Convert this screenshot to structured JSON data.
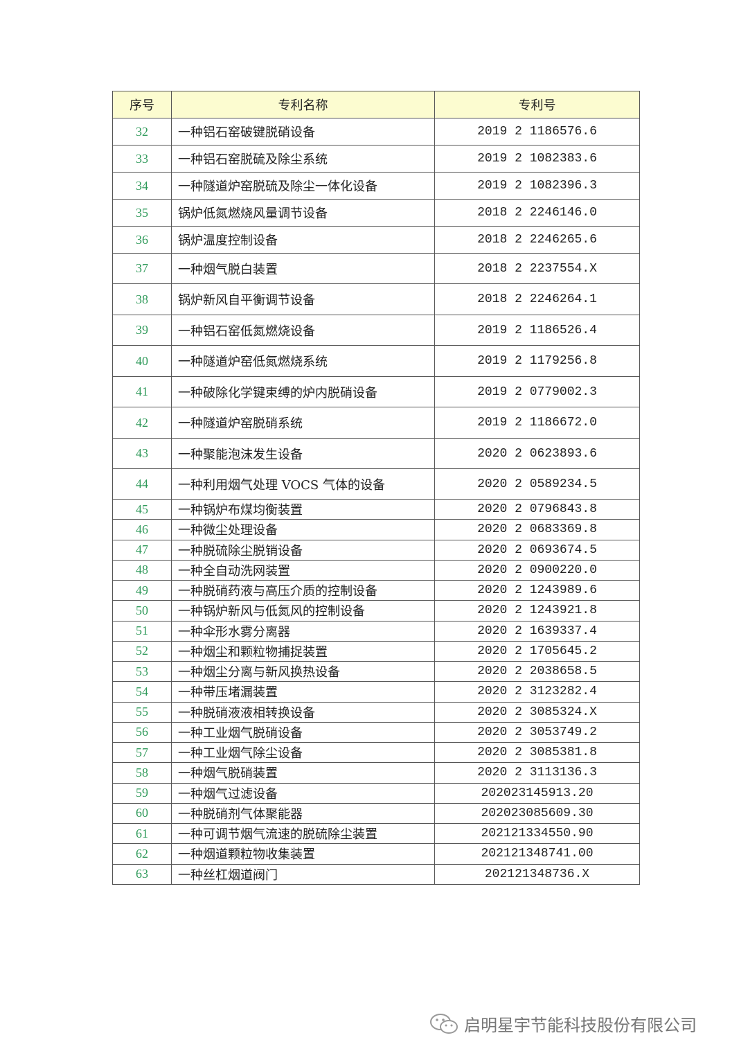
{
  "headers": [
    "序号",
    "专利名称",
    "专利号"
  ],
  "rows": [
    [
      "32",
      "一种铝石窑破键脱硝设备",
      "2019 2 1186576.6"
    ],
    [
      "33",
      "一种铝石窑脱硫及除尘系统",
      "2019 2 1082383.6"
    ],
    [
      "34",
      "一种隧道炉窑脱硫及除尘一体化设备",
      "2019 2 1082396.3"
    ],
    [
      "35",
      "锅炉低氮燃烧风量调节设备",
      "2018 2 2246146.0"
    ],
    [
      "36",
      "锅炉温度控制设备",
      "2018 2 2246265.6"
    ],
    [
      "37",
      "一种烟气脱白装置",
      "2018 2 2237554.X"
    ],
    [
      "38",
      "锅炉新风自平衡调节设备",
      "2018 2 2246264.1"
    ],
    [
      "39",
      "一种铝石窑低氮燃烧设备",
      "2019 2 1186526.4"
    ],
    [
      "40",
      "一种隧道炉窑低氮燃烧系统",
      "2019 2 1179256.8"
    ],
    [
      "41",
      "一种破除化学键束缚的炉内脱硝设备",
      "2019 2 0779002.3"
    ],
    [
      "42",
      "一种隧道炉窑脱硝系统",
      "2019 2 1186672.0"
    ],
    [
      "43",
      "一种聚能泡沫发生设备",
      "2020 2 0623893.6"
    ],
    [
      "44",
      "一种利用烟气处理 VOCS 气体的设备",
      "2020 2 0589234.5"
    ],
    [
      "45",
      "一种锅炉布煤均衡装置",
      "2020 2 0796843.8"
    ],
    [
      "46",
      "一种微尘处理设备",
      "2020 2 0683369.8"
    ],
    [
      "47",
      "一种脱硫除尘脱销设备",
      "2020 2 0693674.5"
    ],
    [
      "48",
      "一种全自动洗网装置",
      "2020 2 0900220.0"
    ],
    [
      "49",
      "一种脱硝药液与高压介质的控制设备",
      "2020 2 1243989.6"
    ],
    [
      "50",
      "一种锅炉新风与低氮风的控制设备",
      "2020 2 1243921.8"
    ],
    [
      "51",
      "一种伞形水雾分离器",
      "2020 2 1639337.4"
    ],
    [
      "52",
      "一种烟尘和颗粒物捕捉装置",
      "2020 2 1705645.2"
    ],
    [
      "53",
      "一种烟尘分离与新风换热设备",
      "2020 2 2038658.5"
    ],
    [
      "54",
      "一种带压堵漏装置",
      "2020 2 3123282.4"
    ],
    [
      "55",
      "一种脱硝液液相转换设备",
      "2020 2 3085324.X"
    ],
    [
      "56",
      "一种工业烟气脱硝设备",
      "2020 2 3053749.2"
    ],
    [
      "57",
      "一种工业烟气除尘设备",
      "2020 2 3085381.8"
    ],
    [
      "58",
      "一种烟气脱硝装置",
      "2020 2 3113136.3"
    ],
    [
      "59",
      "一种烟气过滤设备",
      "202023145913.20"
    ],
    [
      "60",
      "一种脱硝剂气体聚能器",
      "202023085609.30"
    ],
    [
      "61",
      "一种可调节烟气流速的脱硫除尘装置",
      "202121334550.90"
    ],
    [
      "62",
      "一种烟道颗粒物收集装置",
      "202121348741.00"
    ],
    [
      "63",
      "一种丝杠烟道阀门",
      "202121348736.X"
    ]
  ],
  "row_heights_note_free": true,
  "watermark": "启明星宇节能科技股份有限公司",
  "colors": {
    "header_bg": "#fcfcd0",
    "number_text": "#2f9a5a"
  }
}
